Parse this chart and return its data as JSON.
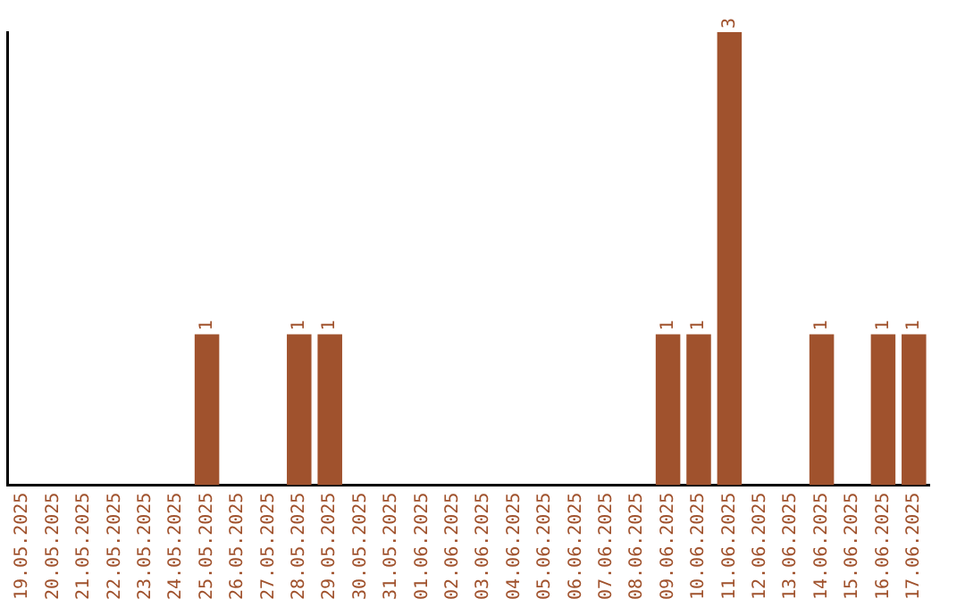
{
  "chart_data": {
    "type": "bar",
    "categories": [
      "19.05.2025",
      "20.05.2025",
      "21.05.2025",
      "22.05.2025",
      "23.05.2025",
      "24.05.2025",
      "25.05.2025",
      "26.05.2025",
      "27.05.2025",
      "28.05.2025",
      "29.05.2025",
      "30.05.2025",
      "31.05.2025",
      "01.06.2025",
      "02.06.2025",
      "03.06.2025",
      "04.06.2025",
      "05.06.2025",
      "06.06.2025",
      "07.06.2025",
      "08.06.2025",
      "09.06.2025",
      "10.06.2025",
      "11.06.2025",
      "12.06.2025",
      "13.06.2025",
      "14.06.2025",
      "15.06.2025",
      "16.06.2025",
      "17.06.2025"
    ],
    "values": [
      0,
      0,
      0,
      0,
      0,
      0,
      1,
      0,
      0,
      1,
      1,
      0,
      0,
      0,
      0,
      0,
      0,
      0,
      0,
      0,
      0,
      1,
      1,
      3,
      0,
      0,
      1,
      0,
      1,
      1
    ],
    "value_labels": [
      null,
      null,
      null,
      null,
      null,
      null,
      "1",
      null,
      null,
      "1",
      "1",
      null,
      null,
      null,
      null,
      null,
      null,
      null,
      null,
      null,
      null,
      "1",
      "1",
      "3",
      null,
      null,
      "1",
      null,
      "1",
      "1"
    ],
    "color": "#a0522d",
    "grid": false,
    "legend": false
  }
}
